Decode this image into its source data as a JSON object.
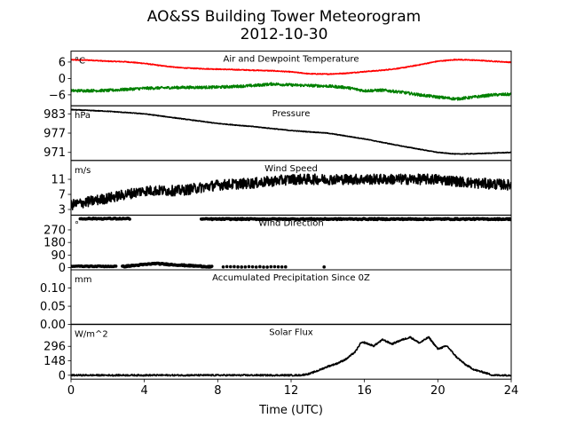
{
  "figure": {
    "title": "AO&SS Building Tower Meteorogram",
    "subtitle": "2012-10-30",
    "xlabel": "Time (UTC)",
    "x_ticks": [
      0,
      4,
      8,
      12,
      16,
      20,
      24
    ],
    "xlim": [
      0,
      24
    ]
  },
  "chart_data": [
    {
      "type": "line",
      "title": "Air and Dewpoint Temperature",
      "unit": "°C",
      "ylim": [
        -10,
        10
      ],
      "yticks": [
        "6",
        "0",
        "−6"
      ],
      "ytick_values": [
        6,
        0,
        -6
      ],
      "series": [
        {
          "color": "#ff0000",
          "noise": 0.15,
          "points": [
            [
              0,
              6.8
            ],
            [
              1,
              6.7
            ],
            [
              2,
              6.3
            ],
            [
              3,
              6.1
            ],
            [
              4,
              5.5
            ],
            [
              5,
              4.6
            ],
            [
              6,
              3.9
            ],
            [
              7,
              3.6
            ],
            [
              8,
              3.4
            ],
            [
              9,
              3.2
            ],
            [
              10,
              3.0
            ],
            [
              11,
              2.8
            ],
            [
              12,
              2.4
            ],
            [
              13,
              1.7
            ],
            [
              14,
              1.6
            ],
            [
              15,
              1.9
            ],
            [
              16,
              2.5
            ],
            [
              17,
              3.0
            ],
            [
              18,
              3.8
            ],
            [
              19,
              5.0
            ],
            [
              20,
              6.3
            ],
            [
              21,
              6.9
            ],
            [
              22,
              6.7
            ],
            [
              23,
              6.3
            ],
            [
              24,
              5.9
            ]
          ]
        },
        {
          "color": "#008000",
          "noise": 0.5,
          "points": [
            [
              0,
              -4.5
            ],
            [
              2,
              -4.4
            ],
            [
              4,
              -3.6
            ],
            [
              6,
              -3.3
            ],
            [
              8,
              -3.2
            ],
            [
              10,
              -2.6
            ],
            [
              11,
              -2.0
            ],
            [
              12,
              -2.4
            ],
            [
              14,
              -2.8
            ],
            [
              15,
              -3.3
            ],
            [
              16,
              -4.5
            ],
            [
              17,
              -4.3
            ],
            [
              18,
              -5.0
            ],
            [
              19,
              -6.0
            ],
            [
              20,
              -6.8
            ],
            [
              21,
              -7.5
            ],
            [
              22,
              -6.8
            ],
            [
              23,
              -6.0
            ],
            [
              24,
              -5.8
            ]
          ]
        }
      ]
    },
    {
      "type": "line",
      "title": "Pressure",
      "unit": "hPa",
      "ylim": [
        968.5,
        985.5
      ],
      "yticks": [
        "983",
        "977",
        "971"
      ],
      "ytick_values": [
        983,
        977,
        971
      ],
      "series": [
        {
          "color": "#000000",
          "noise": 0.1,
          "points": [
            [
              0,
              984.3
            ],
            [
              2,
              983.8
            ],
            [
              4,
              983.0
            ],
            [
              6,
              981.5
            ],
            [
              8,
              980.0
            ],
            [
              10,
              979.0
            ],
            [
              12,
              977.8
            ],
            [
              14,
              977.0
            ],
            [
              16,
              975.2
            ],
            [
              18,
              973.0
            ],
            [
              20,
              971.0
            ],
            [
              21,
              970.5
            ],
            [
              22,
              970.6
            ],
            [
              24,
              971.0
            ]
          ]
        }
      ]
    },
    {
      "type": "line",
      "title": "Wind Speed",
      "unit": "m/s",
      "ylim": [
        1.5,
        16
      ],
      "yticks": [
        "11",
        "7",
        "3"
      ],
      "ytick_values": [
        11,
        7,
        3
      ],
      "series": [
        {
          "color": "#000000",
          "noise": 1.4,
          "points": [
            [
              0,
              4.2
            ],
            [
              2,
              6.0
            ],
            [
              4,
              8.0
            ],
            [
              6,
              8.0
            ],
            [
              8,
              9.5
            ],
            [
              10,
              10.0
            ],
            [
              12,
              11.0
            ],
            [
              14,
              11.0
            ],
            [
              16,
              11.0
            ],
            [
              18,
              11.0
            ],
            [
              20,
              11.0
            ],
            [
              22,
              10.0
            ],
            [
              24,
              9.5
            ]
          ]
        }
      ]
    },
    {
      "type": "scatter",
      "title": "Wind Direction",
      "unit": "°",
      "ylim": [
        -15,
        375
      ],
      "yticks": [
        "270",
        "180",
        "90",
        "0"
      ],
      "ytick_values": [
        270,
        180,
        90,
        0
      ],
      "series": [
        {
          "color": "#000000",
          "marker_size": 1.8,
          "segments": [
            {
              "x": [
                0.5,
                3.2
              ],
              "y": 350,
              "step": 0.06,
              "jitter": 4
            },
            {
              "x": [
                7.1,
                24.0
              ],
              "y": 347,
              "step": 0.05,
              "jitter": 4
            },
            {
              "x": [
                0.0,
                2.5
              ],
              "y": 10,
              "step": 0.07,
              "jitter": 3
            },
            {
              "x": [
                2.8,
                7.7
              ],
              "y_curve": [
                [
                  2.8,
                  8
                ],
                [
                  4.6,
                  30
                ],
                [
                  6.0,
                  18
                ],
                [
                  7.7,
                  6
                ]
              ],
              "step": 0.04,
              "jitter": 4
            },
            {
              "x": [
                8.3,
                11.8
              ],
              "y": 6,
              "step": 0.2,
              "jitter": 2
            }
          ],
          "points": [
            [
              13.8,
              5
            ]
          ]
        }
      ]
    },
    {
      "type": "line",
      "title": "Accumulated Precipitation Since 0Z",
      "unit": "mm",
      "ylim": [
        0,
        0.15
      ],
      "yticks": [
        "0.10",
        "0.05",
        "0.00"
      ],
      "ytick_values": [
        0.1,
        0.05,
        0.0
      ],
      "series": [
        {
          "color": "#000000",
          "noise": 0,
          "points": [
            [
              0,
              0
            ],
            [
              24,
              0
            ]
          ]
        }
      ]
    },
    {
      "type": "line",
      "title": "Solar Flux",
      "unit": "W/m^2",
      "ylim": [
        -40,
        520
      ],
      "yticks": [
        "296",
        "148",
        "0"
      ],
      "ytick_values": [
        296,
        148,
        0
      ],
      "series": [
        {
          "color": "#000000",
          "noise": 8,
          "points": [
            [
              0,
              0
            ],
            [
              12.5,
              0
            ],
            [
              13,
              15
            ],
            [
              13.5,
              50
            ],
            [
              14,
              90
            ],
            [
              14.5,
              120
            ],
            [
              15,
              165
            ],
            [
              15.5,
              240
            ],
            [
              15.8,
              330
            ],
            [
              16,
              335
            ],
            [
              16.5,
              300
            ],
            [
              17,
              365
            ],
            [
              17.5,
              320
            ],
            [
              18,
              360
            ],
            [
              18.5,
              390
            ],
            [
              19,
              330
            ],
            [
              19.5,
              390
            ],
            [
              20,
              270
            ],
            [
              20.5,
              300
            ],
            [
              21,
              190
            ],
            [
              21.5,
              110
            ],
            [
              22,
              55
            ],
            [
              22.5,
              30
            ],
            [
              23,
              0
            ],
            [
              24,
              0
            ]
          ]
        }
      ]
    }
  ]
}
